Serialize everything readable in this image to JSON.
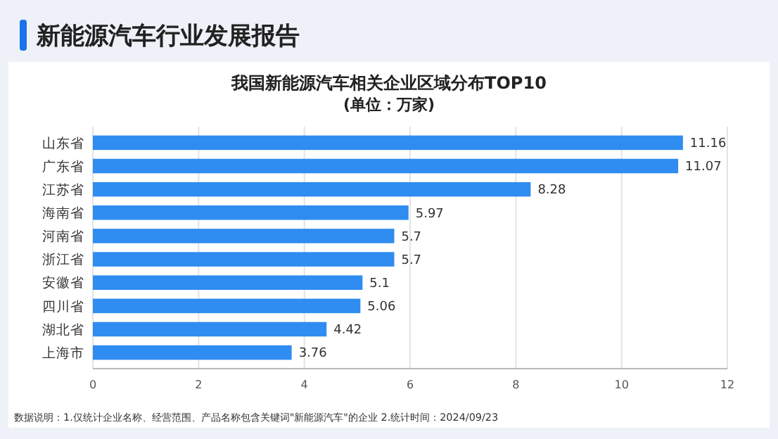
{
  "chart_data": {
    "type": "bar",
    "orientation": "horizontal",
    "title": "新能源汽车行业发展报告",
    "subtitle": "我国新能源汽车相关企业区域分布TOP10\n(单位：万家)",
    "categories": [
      "山东省",
      "广东省",
      "江苏省",
      "海南省",
      "河南省",
      "浙江省",
      "安徽省",
      "四川省",
      "湖北省",
      "上海市"
    ],
    "values": [
      11.16,
      11.07,
      8.28,
      5.97,
      5.7,
      5.7,
      5.1,
      5.06,
      4.42,
      3.76
    ],
    "color": "#2f8cf0",
    "xlim": [
      0,
      12
    ],
    "xticks": [
      0,
      2,
      4,
      6,
      8,
      10,
      12
    ],
    "grid": "x",
    "data_labels": true,
    "annotations": [
      "数据说明：1.仅统计企业名称、经营范围、产品名称包含关键词\"新能源汽车\"的企业  2.统计时间：2024/09/23"
    ]
  }
}
